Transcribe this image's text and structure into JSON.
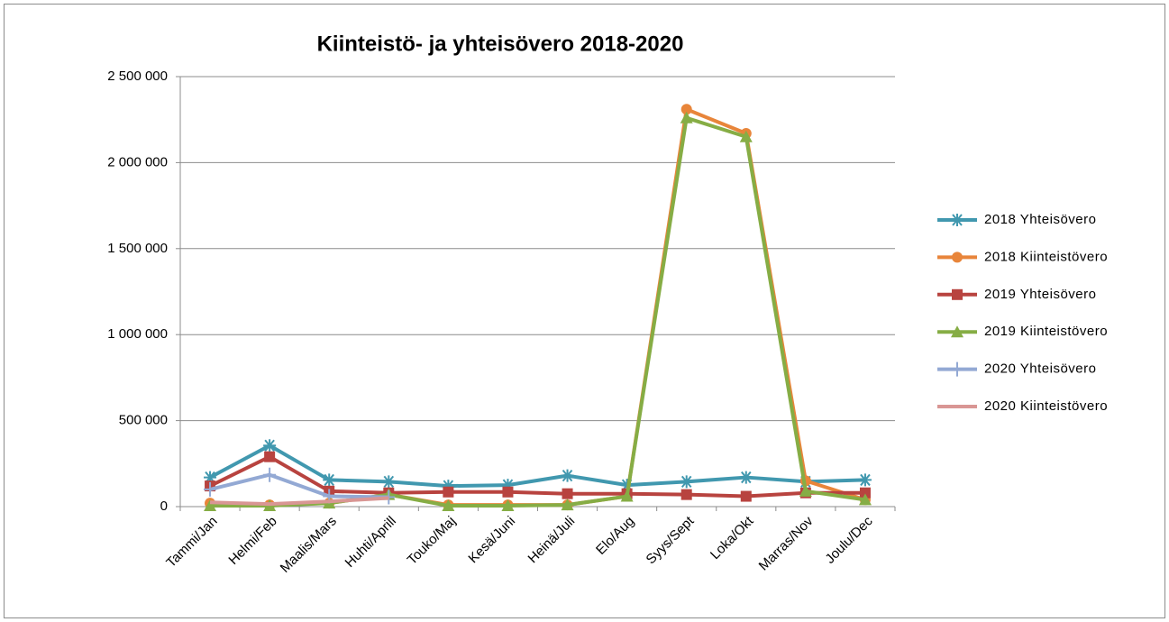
{
  "chart_data": {
    "type": "line",
    "title": "Kiinteistö- ja yhteisövero 2018-2020",
    "categories": [
      "Tammi/Jan",
      "Helmi/Feb",
      "Maalis/Mars",
      "Huhti/Aprill",
      "Touko/Maj",
      "Kesä/Juni",
      "Heinä/Juli",
      "Elo/Aug",
      "Syys/Sept",
      "Loka/Okt",
      "Marras/Nov",
      "Joulu/Dec"
    ],
    "series": [
      {
        "name": "2018 Yhteisövero",
        "color": "#4198af",
        "marker": "star",
        "values": [
          170000,
          355000,
          155000,
          145000,
          120000,
          125000,
          180000,
          125000,
          145000,
          170000,
          145000,
          155000
        ]
      },
      {
        "name": "2018 Kiinteistövero",
        "color": "#e8853a",
        "marker": "circle",
        "values": [
          20000,
          10000,
          20000,
          70000,
          10000,
          10000,
          10000,
          60000,
          2310000,
          2170000,
          150000,
          40000
        ]
      },
      {
        "name": "2019 Yhteisövero",
        "color": "#b8433f",
        "marker": "square",
        "values": [
          120000,
          290000,
          90000,
          80000,
          85000,
          85000,
          75000,
          75000,
          70000,
          60000,
          80000,
          80000
        ]
      },
      {
        "name": "2019 Kiinteistövero",
        "color": "#86ad45",
        "marker": "triangle",
        "values": [
          5000,
          5000,
          20000,
          70000,
          5000,
          5000,
          10000,
          60000,
          2260000,
          2150000,
          90000,
          40000
        ]
      },
      {
        "name": "2020 Yhteisövero",
        "color": "#93a9d4",
        "marker": "plus",
        "values": [
          100000,
          185000,
          60000,
          55000,
          null,
          null,
          null,
          null,
          null,
          null,
          null,
          null
        ]
      },
      {
        "name": "2020 Kiinteistövero",
        "color": "#d99694",
        "marker": "none",
        "values": [
          25000,
          15000,
          30000,
          50000,
          null,
          null,
          null,
          null,
          null,
          null,
          null,
          null
        ]
      }
    ],
    "ylim": [
      0,
      2500000
    ],
    "yticks": [
      0,
      {
        "value": 500000,
        "label": "500 000"
      },
      {
        "value": 1000000,
        "label": "1 000 000"
      },
      {
        "value": 1500000,
        "label": "1 500 000"
      },
      {
        "value": 2000000,
        "label": "2 000 000"
      },
      {
        "value": 2500000,
        "label": "2 500 000"
      }
    ],
    "grid": true,
    "legend": "right"
  }
}
